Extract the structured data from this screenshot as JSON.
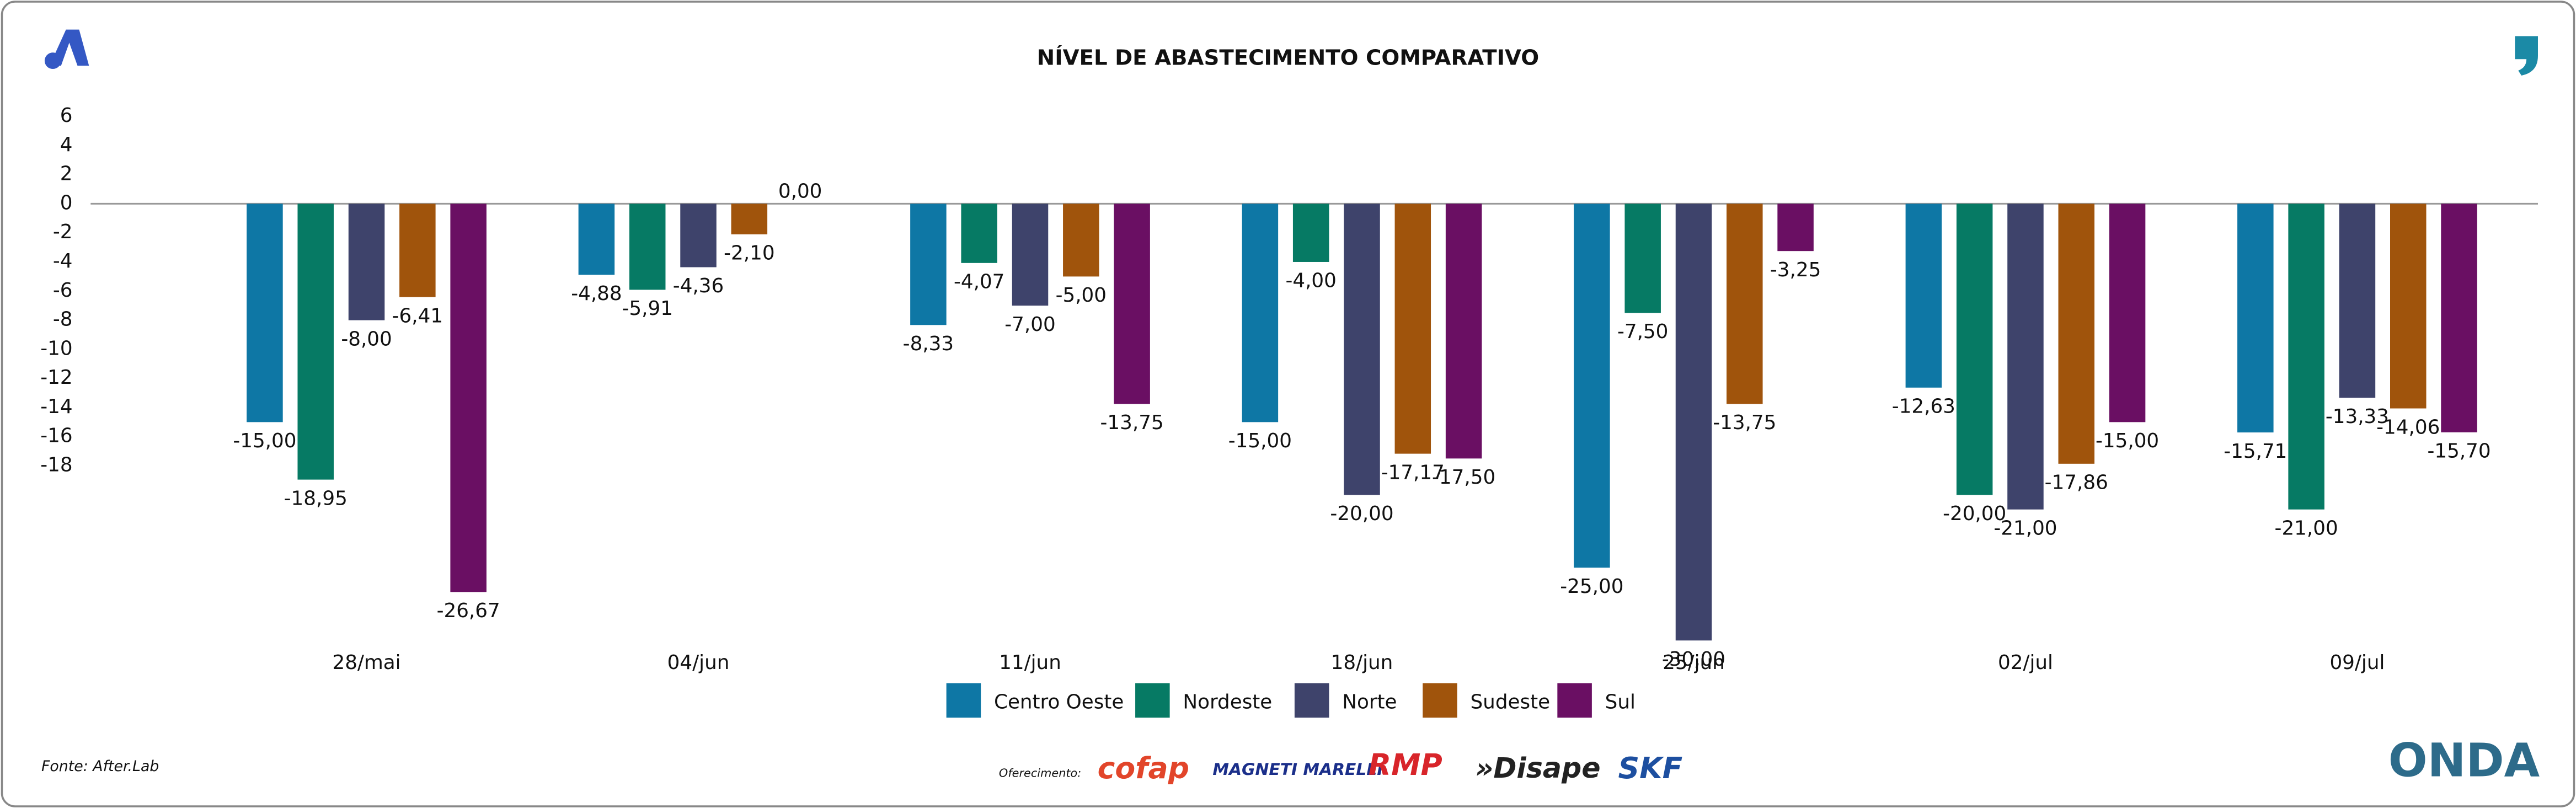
{
  "chart_data": {
    "type": "bar",
    "title": "NÍVEL DE ABASTECIMENTO COMPARATIVO",
    "categories": [
      "28/mai",
      "04/jun",
      "11/jun",
      "18/jun",
      "25/jun",
      "02/jul",
      "09/jul"
    ],
    "series": [
      {
        "name": "Centro Oeste",
        "color": "#0e77a5",
        "values": [
          -15,
          -4.88,
          -8.33,
          -15,
          -25,
          -12.63,
          -15.71
        ],
        "value_labels": [
          "-15,00",
          "-4,88",
          "-8,33",
          "-15,00",
          "-25,00",
          "-12,63",
          "-15,71"
        ]
      },
      {
        "name": "Nordeste",
        "color": "#067a64",
        "values": [
          -18.95,
          -5.91,
          -4.07,
          -4,
          -7.5,
          -20,
          -21
        ],
        "value_labels": [
          "-18,95",
          "-5,91",
          "-4,07",
          "-4,00",
          "-7,50",
          "-20,00",
          "-21,00"
        ]
      },
      {
        "name": "Norte",
        "color": "#3e436b",
        "values": [
          -8,
          -4.36,
          -7,
          -20,
          -30,
          -21,
          -13.33
        ],
        "value_labels": [
          "-8,00",
          "-4,36",
          "-7,00",
          "-20,00",
          "-30,00",
          "-21,00",
          "-13,33"
        ]
      },
      {
        "name": "Sudeste",
        "color": "#a0540c",
        "values": [
          -6.41,
          -2.1,
          -5,
          -17.17,
          -13.75,
          -17.86,
          -14.06
        ],
        "value_labels": [
          "-6,41",
          "-2,10",
          "-5,00",
          "-17,17",
          "-13,75",
          "-17,86",
          "-14,06"
        ]
      },
      {
        "name": "Sul",
        "color": "#6a0f63",
        "values": [
          -26.67,
          0,
          -13.75,
          -17.5,
          -3.25,
          -15,
          -15.7
        ],
        "value_labels": [
          "-26,67",
          "0,00",
          "-13,75",
          "-17,50",
          "-3,25",
          "-15,00",
          "-15,70"
        ]
      }
    ],
    "ylim": [
      -30,
      7
    ],
    "yticks": [
      6,
      4,
      2,
      0,
      -2,
      -4,
      -6,
      -8,
      -10,
      -12,
      -14,
      -16,
      -18
    ],
    "grid": false
  },
  "footer": {
    "source": "Fonte: After.Lab",
    "sponsor_label": "Oferecimento:",
    "sponsors": [
      "cofap",
      "MAGNETI MARELLI",
      "RMP",
      "»Disape",
      "SKF"
    ],
    "brand": "ONDA"
  }
}
